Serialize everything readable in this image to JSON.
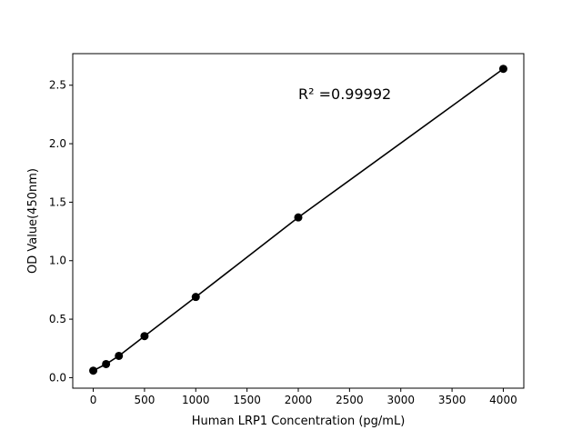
{
  "chart_data": {
    "type": "scatter",
    "title": "",
    "xlabel": "Human LRP1 Concentration (pg/mL)",
    "ylabel": "OD Value(450nm)",
    "xlim": [
      -200,
      4200
    ],
    "ylim": [
      -0.09,
      2.77
    ],
    "xticks": [
      0,
      500,
      1000,
      1500,
      2000,
      2500,
      3000,
      3500,
      4000
    ],
    "yticks": [
      0.0,
      0.5,
      1.0,
      1.5,
      2.0,
      2.5
    ],
    "xtick_labels": [
      "0",
      "500",
      "1000",
      "1500",
      "2000",
      "2500",
      "3000",
      "3500",
      "4000"
    ],
    "ytick_labels": [
      "0.0",
      "0.5",
      "1.0",
      "1.5",
      "2.0",
      "2.5"
    ],
    "grid": false,
    "series": [
      {
        "x": [
          0,
          125,
          250,
          500,
          1000,
          2000,
          4000
        ],
        "y": [
          0.06,
          0.116,
          0.186,
          0.355,
          0.69,
          1.37,
          2.64
        ],
        "color": "#000000",
        "marker": "circle",
        "line": true
      }
    ],
    "annotations": [
      {
        "text": "R² =0.99992",
        "x": 2000,
        "y": 2.38
      }
    ]
  }
}
